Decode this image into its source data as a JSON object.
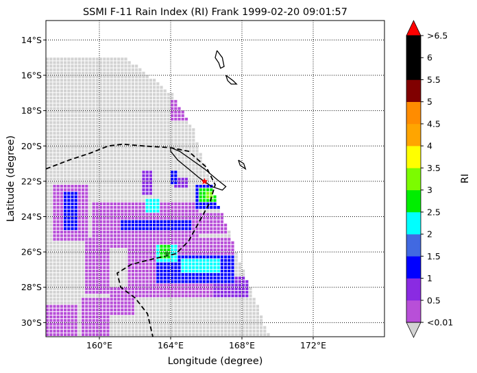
{
  "chart_data": {
    "type": "heatmap",
    "title": "SSMI F-11 Rain Index (RI) Frank 1999-02-20 09:01:57",
    "xlabel": "Longitude (degree)",
    "ylabel": "Latitude (degree)",
    "xlim": [
      157.0,
      176.0
    ],
    "ylim": [
      -30.8,
      -12.9
    ],
    "x_ticks": [
      {
        "value": 160,
        "label": "160°E"
      },
      {
        "value": 164,
        "label": "164°E"
      },
      {
        "value": 168,
        "label": "168°E"
      },
      {
        "value": 172,
        "label": "172°E"
      }
    ],
    "y_ticks": [
      {
        "value": -14,
        "label": "14°S"
      },
      {
        "value": -16,
        "label": "16°S"
      },
      {
        "value": -18,
        "label": "18°S"
      },
      {
        "value": -20,
        "label": "20°S"
      },
      {
        "value": -22,
        "label": "22°S"
      },
      {
        "value": -24,
        "label": "24°S"
      },
      {
        "value": -26,
        "label": "26°S"
      },
      {
        "value": -28,
        "label": "28°S"
      },
      {
        "value": -30,
        "label": "30°S"
      }
    ],
    "grid": true,
    "colorbar": {
      "label": "RI",
      "levels": [
        "<0.01",
        "0.5",
        "1",
        "1.5",
        "2",
        "2.5",
        "3",
        "3.5",
        "4",
        "4.5",
        "5",
        "5.5",
        "6",
        ">6.5"
      ],
      "colors": [
        "#b84fd8",
        "#8a2be2",
        "#0000ff",
        "#4169e1",
        "#00ffff",
        "#00ee00",
        "#7cfc00",
        "#ffff00",
        "#ffa500",
        "#ff8c00",
        "#800000",
        "#000000",
        "#000000"
      ],
      "under_color": "#d3d3d3",
      "over_color": "#ff0000"
    },
    "swath": {
      "color": "#d3d3d3",
      "left_lon": 157.0,
      "top_lat": -15.0,
      "right_edge": [
        [
          -15.0,
          161.5
        ],
        [
          -17.0,
          164.0
        ],
        [
          -19.0,
          165.2
        ],
        [
          -21.0,
          165.8
        ],
        [
          -23.0,
          166.5
        ],
        [
          -25.0,
          167.3
        ],
        [
          -27.0,
          168.0
        ],
        [
          -29.0,
          168.8
        ],
        [
          -30.8,
          169.5
        ]
      ]
    },
    "rain_regions": [
      {
        "lon": [
          163.9,
          165.2
        ],
        "lat": [
          -18.5,
          -17.3
        ],
        "ri": 0.3
      },
      {
        "lon": [
          157.3,
          159.2
        ],
        "lat": [
          -25.2,
          -22.0
        ],
        "ri": 0.3
      },
      {
        "lon": [
          157.9,
          158.7
        ],
        "lat": [
          -24.6,
          -22.4
        ],
        "ri": 1.2
      },
      {
        "lon": [
          159.0,
          160.5
        ],
        "lat": [
          -28.3,
          -25.0
        ],
        "ri": 0.3
      },
      {
        "lon": [
          159.5,
          165.5
        ],
        "lat": [
          -25.6,
          -23.0
        ],
        "ri": 0.4
      },
      {
        "lon": [
          161.0,
          165.0
        ],
        "lat": [
          -24.7,
          -24.0
        ],
        "ri": 1.2
      },
      {
        "lon": [
          161.5,
          167.5
        ],
        "lat": [
          -28.5,
          -25.0
        ],
        "ri": 0.4
      },
      {
        "lon": [
          163.0,
          167.5
        ],
        "lat": [
          -27.6,
          -26.0
        ],
        "ri": 1.2
      },
      {
        "lon": [
          164.5,
          166.6
        ],
        "lat": [
          -27.0,
          -26.3
        ],
        "ri": 2.4
      },
      {
        "lon": [
          163.0,
          164.2
        ],
        "lat": [
          -26.5,
          -25.4
        ],
        "ri": 2.4
      },
      {
        "lon": [
          163.2,
          163.9
        ],
        "lat": [
          -26.2,
          -25.5
        ],
        "ri": 2.8
      },
      {
        "lon": [
          162.5,
          163.3
        ],
        "lat": [
          -23.6,
          -22.8
        ],
        "ri": 2.3
      },
      {
        "lon": [
          162.6,
          163.1
        ],
        "lat": [
          -23.4,
          -22.9
        ],
        "ri": 1.7
      },
      {
        "lon": [
          165.3,
          166.8
        ],
        "lat": [
          -23.5,
          -22.0
        ],
        "ri": 1.2
      },
      {
        "lon": [
          165.5,
          166.4
        ],
        "lat": [
          -23.1,
          -22.3
        ],
        "ri": 2.8
      },
      {
        "lon": [
          165.8,
          166.2
        ],
        "lat": [
          -22.8,
          -22.5
        ],
        "ri": 3.2
      },
      {
        "lon": [
          157.0,
          158.6
        ],
        "lat": [
          -30.8,
          -28.8
        ],
        "ri": 0.3
      },
      {
        "lon": [
          158.8,
          160.5
        ],
        "lat": [
          -30.8,
          -28.5
        ],
        "ri": 0.3
      },
      {
        "lon": [
          160.4,
          161.8
        ],
        "lat": [
          -29.5,
          -27.8
        ],
        "ri": 0.3
      },
      {
        "lon": [
          164.0,
          164.8
        ],
        "lat": [
          -22.3,
          -21.6
        ],
        "ri": 0.5
      },
      {
        "lon": [
          163.8,
          164.3
        ],
        "lat": [
          -22.0,
          -21.2
        ],
        "ri": 1.2
      },
      {
        "lon": [
          165.0,
          167.0
        ],
        "lat": [
          -24.8,
          -23.6
        ],
        "ri": 0.4
      },
      {
        "lon": [
          166.2,
          168.2
        ],
        "lat": [
          -28.5,
          -27.3
        ],
        "ri": 0.6
      },
      {
        "lon": [
          162.3,
          162.8
        ],
        "lat": [
          -22.6,
          -21.3
        ],
        "ri": 0.6
      }
    ],
    "storm_markers": [
      {
        "lon": 165.9,
        "lat": -22.0,
        "color": "#ff0000"
      },
      {
        "lon": 163.8,
        "lat": -26.1,
        "color": "#228b22"
      }
    ],
    "track": [
      [
        157.0,
        -21.3
      ],
      [
        158.3,
        -20.8
      ],
      [
        159.5,
        -20.4
      ],
      [
        160.5,
        -20.0
      ],
      [
        161.3,
        -19.9
      ],
      [
        162.5,
        -20.0
      ],
      [
        164.0,
        -20.1
      ],
      [
        165.0,
        -20.3
      ],
      [
        166.0,
        -21.2
      ],
      [
        166.5,
        -22.2
      ],
      [
        166.2,
        -23.2
      ],
      [
        165.6,
        -24.3
      ],
      [
        165.0,
        -25.4
      ],
      [
        164.3,
        -26.1
      ],
      [
        163.0,
        -26.4
      ],
      [
        161.8,
        -26.7
      ],
      [
        161.0,
        -27.2
      ],
      [
        161.2,
        -28.0
      ],
      [
        162.0,
        -28.6
      ],
      [
        162.7,
        -29.5
      ],
      [
        163.0,
        -30.8
      ]
    ],
    "coastlines": [
      [
        [
          164.0,
          -20.1
        ],
        [
          164.5,
          -20.3
        ],
        [
          165.2,
          -20.8
        ],
        [
          165.9,
          -21.3
        ],
        [
          166.6,
          -21.9
        ],
        [
          167.1,
          -22.3
        ],
        [
          166.9,
          -22.5
        ],
        [
          166.3,
          -22.3
        ],
        [
          165.6,
          -21.8
        ],
        [
          165.0,
          -21.3
        ],
        [
          164.4,
          -20.8
        ],
        [
          164.0,
          -20.3
        ],
        [
          164.0,
          -20.1
        ]
      ],
      [
        [
          166.6,
          -14.6
        ],
        [
          166.9,
          -15.0
        ],
        [
          167.0,
          -15.5
        ],
        [
          166.8,
          -15.6
        ],
        [
          166.7,
          -15.3
        ],
        [
          166.5,
          -15.0
        ],
        [
          166.6,
          -14.6
        ]
      ],
      [
        [
          167.1,
          -16.0
        ],
        [
          167.5,
          -16.3
        ],
        [
          167.7,
          -16.5
        ],
        [
          167.4,
          -16.5
        ],
        [
          167.2,
          -16.3
        ],
        [
          167.1,
          -16.0
        ]
      ],
      [
        [
          167.8,
          -20.8
        ],
        [
          168.1,
          -21.0
        ],
        [
          168.2,
          -21.3
        ],
        [
          167.9,
          -21.1
        ],
        [
          167.8,
          -20.8
        ]
      ]
    ]
  }
}
